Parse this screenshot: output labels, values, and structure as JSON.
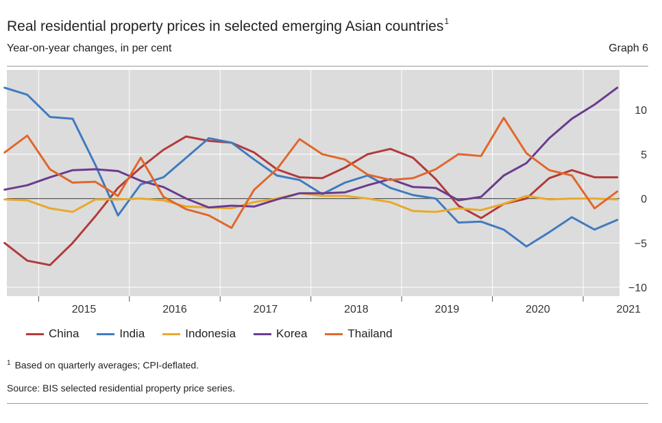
{
  "header": {
    "title": "Real residential property prices in selected emerging Asian countries",
    "title_footnote_mark": "1",
    "subtitle": "Year-on-year changes, in per cent",
    "graph_number": "Graph 6"
  },
  "footnote": {
    "mark": "1",
    "text": "Based on quarterly averages; CPI-deflated."
  },
  "source": "Source: BIS selected residential property price series.",
  "chart_data": {
    "type": "line",
    "title": "Real residential property prices in selected emerging Asian countries",
    "xlabel": "",
    "ylabel": "Year-on-year changes, in per cent",
    "ylim": [
      -11,
      14.5
    ],
    "yticks": [
      10,
      5,
      0,
      -5,
      -10
    ],
    "ytick_labels": [
      "10",
      "5",
      "0",
      "−5",
      "−10"
    ],
    "xlim": [
      2014.65,
      2021.4
    ],
    "years": [
      "2015",
      "2016",
      "2017",
      "2018",
      "2019",
      "2020",
      "2021"
    ],
    "year_starts": [
      2015,
      2016,
      2017,
      2018,
      2019,
      2020,
      2021
    ],
    "grid": true,
    "zero_line": true,
    "legend_position": "bottom",
    "x": [
      2014.625,
      2014.875,
      2015.125,
      2015.375,
      2015.625,
      2015.875,
      2016.125,
      2016.375,
      2016.625,
      2016.875,
      2017.125,
      2017.375,
      2017.625,
      2017.875,
      2018.125,
      2018.375,
      2018.625,
      2018.875,
      2019.125,
      2019.375,
      2019.625,
      2019.875,
      2020.125,
      2020.375,
      2020.625,
      2020.875,
      2021.125,
      2021.375
    ],
    "series": [
      {
        "name": "China",
        "color": "#b23a3a",
        "values": [
          -5.0,
          -7.0,
          -7.5,
          -5.0,
          -2.0,
          1.2,
          3.5,
          5.5,
          7.0,
          6.5,
          6.3,
          5.2,
          3.3,
          2.4,
          2.3,
          3.5,
          5.0,
          5.6,
          4.6,
          2.2,
          -0.8,
          -2.2,
          -0.6,
          0.0,
          2.3,
          3.2,
          2.4,
          2.4
        ]
      },
      {
        "name": "India",
        "color": "#3f7bbf",
        "values": [
          12.5,
          11.7,
          9.2,
          9.0,
          3.8,
          -1.9,
          1.6,
          2.4,
          4.6,
          6.8,
          6.3,
          4.4,
          2.6,
          2.1,
          0.5,
          1.8,
          2.6,
          1.2,
          0.4,
          0.0,
          -2.7,
          -2.6,
          -3.5,
          -5.4,
          -3.8,
          -2.1,
          -3.5,
          -2.4
        ]
      },
      {
        "name": "Indonesia",
        "color": "#e8a92a",
        "values": [
          -0.1,
          -0.2,
          -1.1,
          -1.5,
          -0.1,
          -0.1,
          0.0,
          -0.2,
          -0.9,
          -1.0,
          -1.1,
          -0.4,
          0.0,
          0.6,
          0.3,
          0.3,
          0.0,
          -0.4,
          -1.4,
          -1.5,
          -1.1,
          -1.3,
          -0.6,
          0.3,
          -0.1,
          0.0,
          0.0,
          -0.1
        ]
      },
      {
        "name": "Korea",
        "color": "#6b3a8f",
        "values": [
          1.0,
          1.5,
          2.4,
          3.2,
          3.3,
          3.1,
          2.0,
          1.3,
          0.0,
          -1.0,
          -0.8,
          -0.9,
          -0.1,
          0.6,
          0.6,
          0.7,
          1.5,
          2.2,
          1.3,
          1.2,
          -0.2,
          0.2,
          2.6,
          4.0,
          6.8,
          9.0,
          10.6,
          12.5
        ]
      },
      {
        "name": "Thailand",
        "color": "#e0672a",
        "values": [
          5.2,
          7.1,
          3.3,
          1.8,
          1.9,
          0.3,
          4.6,
          0.2,
          -1.2,
          -1.9,
          -3.3,
          1.0,
          3.3,
          6.7,
          5.0,
          4.4,
          2.7,
          2.1,
          2.3,
          3.3,
          5.0,
          4.8,
          9.1,
          5.1,
          3.2,
          2.6,
          -1.1,
          0.8
        ]
      }
    ]
  }
}
